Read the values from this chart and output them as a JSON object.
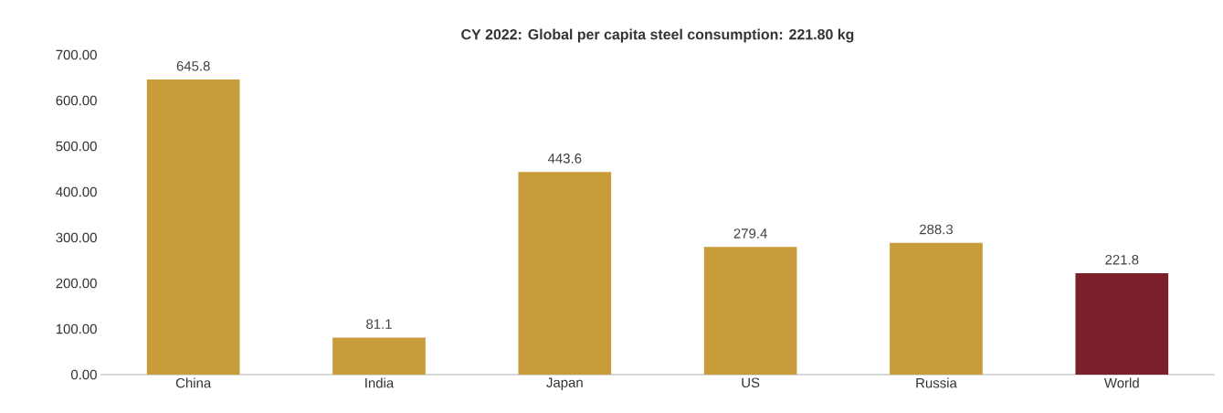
{
  "chart_data": {
    "type": "bar",
    "title": "CY 2022: Global per capita steel consumption: 221.80 kg",
    "categories": [
      "China",
      "India",
      "Japan",
      "US",
      "Russia",
      "World"
    ],
    "values": [
      645.8,
      81.1,
      443.6,
      279.4,
      288.3,
      221.8
    ],
    "colors": [
      "#c89b3b",
      "#c89b3b",
      "#c89b3b",
      "#c89b3b",
      "#c89b3b",
      "#7b1f2b"
    ],
    "ylim": [
      0,
      700
    ],
    "yticks": [
      {
        "value": 0,
        "label": "0.00"
      },
      {
        "value": 100,
        "label": "100.00"
      },
      {
        "value": 200,
        "label": "200.00"
      },
      {
        "value": 300,
        "label": "300.00"
      },
      {
        "value": 400,
        "label": "400.00"
      },
      {
        "value": 500,
        "label": "500.00"
      },
      {
        "value": 600,
        "label": "600.00"
      },
      {
        "value": 700,
        "label": "700.00"
      }
    ],
    "data_labels": true,
    "grid": false
  }
}
